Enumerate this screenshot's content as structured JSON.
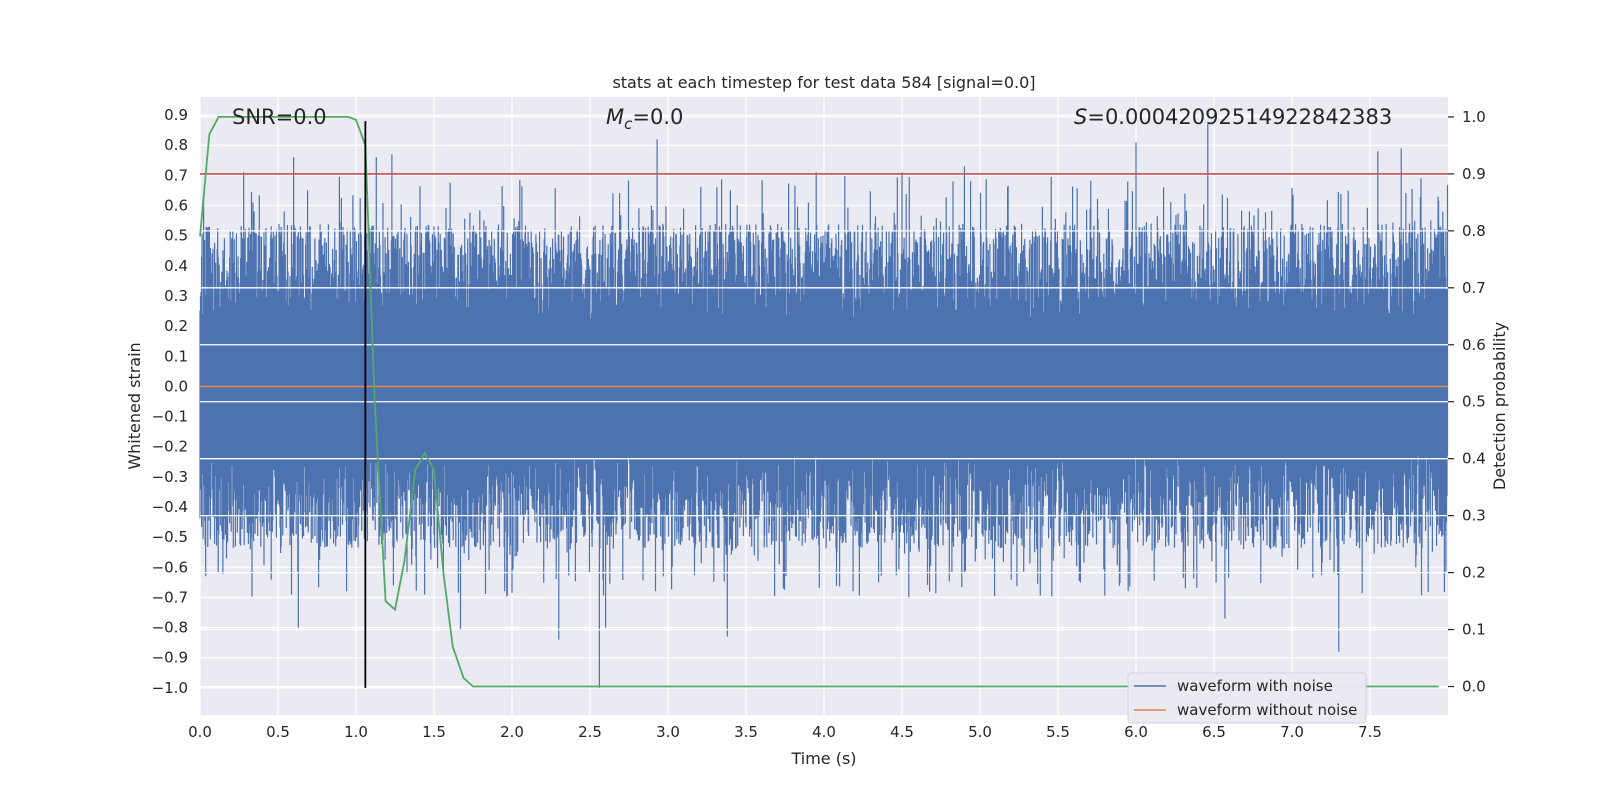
{
  "chart_data": {
    "type": "line",
    "title": "stats at each timestep for test data 584 [signal=0.0]",
    "xlabel": "Time (s)",
    "ylabel": "Whitened strain",
    "y2label": "Detection probability",
    "xlim": [
      0.0,
      8.0
    ],
    "ylim": [
      -1.09,
      0.96
    ],
    "y2lim": [
      -0.05,
      1.035
    ],
    "xticks": [
      "0.0",
      "0.5",
      "1.0",
      "1.5",
      "2.0",
      "2.5",
      "3.0",
      "3.5",
      "4.0",
      "4.5",
      "5.0",
      "5.5",
      "6.0",
      "6.5",
      "7.0",
      "7.5"
    ],
    "yticks": [
      "−1.0",
      "−0.9",
      "−0.8",
      "−0.7",
      "−0.6",
      "−0.5",
      "−0.4",
      "−0.3",
      "−0.2",
      "−0.1",
      "0.0",
      "0.1",
      "0.2",
      "0.3",
      "0.4",
      "0.5",
      "0.6",
      "0.7",
      "0.8",
      "0.9"
    ],
    "y2ticks": [
      "0.0",
      "0.1",
      "0.2",
      "0.3",
      "0.4",
      "0.5",
      "0.6",
      "0.7",
      "0.8",
      "0.9",
      "1.0"
    ],
    "grid": true,
    "annotations": {
      "snr": "SNR=0.0",
      "mc_symbol": "M",
      "mc_sub": "c",
      "mc_value": "=0.0",
      "s_symbol": "S",
      "s_value": "=0.00042092514922842383"
    },
    "threshold_line": {
      "axis": "right",
      "y": 0.9,
      "color": "#c44e52"
    },
    "marker_line": {
      "x": 1.06,
      "y_from": -1.0,
      "y_to": 0.88,
      "color": "#000000"
    },
    "series": [
      {
        "name": "waveform with noise",
        "axis": "left",
        "color": "#4c72b0",
        "description_values": "dense noise between approximately -1.0 and 0.87 over 0-8 s",
        "spikes": [
          {
            "x": 0.06,
            "y": 0.53
          },
          {
            "x": 0.28,
            "y": 0.71
          },
          {
            "x": 0.6,
            "y": 0.76
          },
          {
            "x": 0.63,
            "y": -0.8
          },
          {
            "x": 1.13,
            "y": 0.76
          },
          {
            "x": 1.23,
            "y": 0.77
          },
          {
            "x": 1.67,
            "y": -0.81
          },
          {
            "x": 2.3,
            "y": -0.84
          },
          {
            "x": 2.56,
            "y": -1.0
          },
          {
            "x": 2.6,
            "y": -0.8
          },
          {
            "x": 2.93,
            "y": 0.82
          },
          {
            "x": 3.38,
            "y": -0.83
          },
          {
            "x": 3.95,
            "y": 0.71
          },
          {
            "x": 4.5,
            "y": 0.71
          },
          {
            "x": 4.9,
            "y": 0.73
          },
          {
            "x": 6.0,
            "y": 0.81
          },
          {
            "x": 6.46,
            "y": 0.87
          },
          {
            "x": 6.57,
            "y": -0.77
          },
          {
            "x": 7.3,
            "y": -0.88
          },
          {
            "x": 7.55,
            "y": 0.78
          },
          {
            "x": 7.7,
            "y": 0.79
          }
        ]
      },
      {
        "name": "waveform without noise",
        "axis": "left",
        "color": "#dd8452",
        "x": [
          0.0,
          8.0
        ],
        "y": [
          0.0,
          0.0
        ]
      },
      {
        "name": "",
        "axis": "right",
        "color": "#55a868",
        "x": [
          0.0,
          0.06,
          0.12,
          0.25,
          0.5,
          0.75,
          0.95,
          1.0,
          1.06,
          1.12,
          1.19,
          1.25,
          1.31,
          1.38,
          1.44,
          1.5,
          1.56,
          1.62,
          1.69,
          1.75,
          2.0,
          3.0,
          4.0,
          5.0,
          6.0,
          7.0,
          7.94
        ],
        "y": [
          0.79,
          0.97,
          1.0,
          1.0,
          1.0,
          1.0,
          1.0,
          0.995,
          0.95,
          0.5,
          0.15,
          0.135,
          0.22,
          0.38,
          0.41,
          0.38,
          0.2,
          0.07,
          0.015,
          0.0,
          0.0,
          0.0,
          0.0,
          0.0,
          0.0,
          0.0,
          0.0
        ]
      }
    ],
    "legend": {
      "placement": "lower-right",
      "entries": [
        {
          "label": "waveform with noise",
          "color": "#4c72b0"
        },
        {
          "label": "waveform without noise",
          "color": "#dd8452"
        }
      ]
    }
  }
}
